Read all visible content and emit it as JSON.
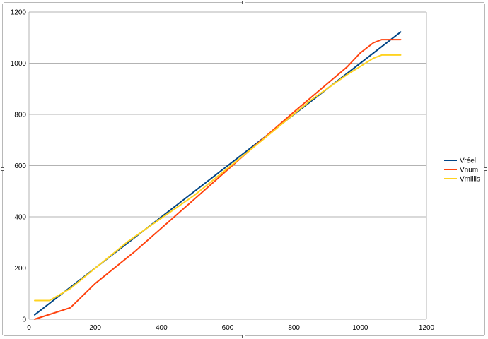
{
  "chart_data": {
    "type": "line",
    "title": "",
    "xlabel": "",
    "ylabel": "",
    "xlim": [
      0,
      1200
    ],
    "ylim": [
      0,
      1200
    ],
    "xticks": [
      0,
      200,
      400,
      600,
      800,
      1000,
      1200
    ],
    "yticks": [
      0,
      200,
      400,
      600,
      800,
      1000,
      1200
    ],
    "grid": "horizontal",
    "legend_position": "right",
    "series": [
      {
        "name": "Vréel",
        "color": "#004586",
        "x": [
          17,
          1122
        ],
        "y": [
          17,
          1122
        ]
      },
      {
        "name": "Vnum",
        "color": "#ff420e",
        "x": [
          17,
          125,
          200,
          320,
          500,
          640,
          800,
          960,
          1000,
          1040,
          1065,
          1122
        ],
        "y": [
          0,
          45,
          140,
          265,
          470,
          630,
          810,
          985,
          1040,
          1080,
          1092,
          1092
        ]
      },
      {
        "name": "Vmillis",
        "color": "#ffd320",
        "x": [
          17,
          62,
          125,
          300,
          500,
          700,
          850,
          960,
          1040,
          1065,
          1122
        ],
        "y": [
          73,
          73,
          120,
          305,
          485,
          695,
          855,
          955,
          1020,
          1032,
          1032
        ]
      }
    ]
  }
}
